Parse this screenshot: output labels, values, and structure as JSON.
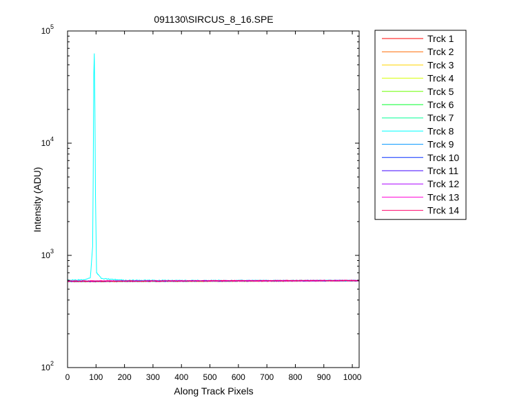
{
  "chart_data": {
    "type": "line",
    "title": "091130\\SIRCUS_8_16.SPE",
    "xlabel": "Along Track Pixels",
    "ylabel": "Intensity (ADU)",
    "xlim": [
      0,
      1024
    ],
    "ylim": [
      100,
      100000
    ],
    "yscale": "log",
    "x_ticks": [
      0,
      100,
      200,
      300,
      400,
      500,
      600,
      700,
      800,
      900,
      1000
    ],
    "y_ticks": [
      {
        "value": 100,
        "base": "10",
        "exp": "2"
      },
      {
        "value": 1000,
        "base": "10",
        "exp": "3"
      },
      {
        "value": 10000,
        "base": "10",
        "exp": "4"
      },
      {
        "value": 100000,
        "base": "10",
        "exp": "5"
      }
    ],
    "legend_position": "outside-right",
    "grid": false,
    "baseline_level": 590,
    "series": [
      {
        "name": "Trck 1",
        "color": "#ff0000",
        "x": [
          0,
          200,
          400,
          600,
          800,
          1024
        ],
        "y": [
          583,
          585,
          588,
          590,
          592,
          595
        ]
      },
      {
        "name": "Trck 2",
        "color": "#ff6a00",
        "x": [
          0,
          200,
          400,
          600,
          800,
          1024
        ],
        "y": [
          584,
          586,
          588,
          590,
          592,
          594
        ]
      },
      {
        "name": "Trck 3",
        "color": "#ffd400",
        "x": [
          0,
          200,
          400,
          600,
          800,
          1024
        ],
        "y": [
          585,
          587,
          589,
          591,
          592,
          594
        ]
      },
      {
        "name": "Trck 4",
        "color": "#d4ff00",
        "x": [
          0,
          200,
          400,
          600,
          800,
          1024
        ],
        "y": [
          585,
          587,
          589,
          591,
          593,
          594
        ]
      },
      {
        "name": "Trck 5",
        "color": "#6aff00",
        "x": [
          0,
          200,
          400,
          600,
          800,
          1024
        ],
        "y": [
          586,
          588,
          589,
          591,
          593,
          595
        ]
      },
      {
        "name": "Trck 6",
        "color": "#00ff2a",
        "x": [
          0,
          200,
          400,
          600,
          800,
          1024
        ],
        "y": [
          586,
          588,
          590,
          591,
          593,
          595
        ]
      },
      {
        "name": "Trck 7",
        "color": "#00ff95",
        "x": [
          0,
          200,
          400,
          600,
          800,
          1024
        ],
        "y": [
          587,
          588,
          590,
          592,
          593,
          595
        ]
      },
      {
        "name": "Trck 8",
        "color": "#00ffff",
        "x": [
          0,
          60,
          80,
          88,
          90,
          92,
          94,
          96,
          98,
          102,
          120,
          200,
          400,
          600,
          800,
          1024
        ],
        "y": [
          600,
          605,
          630,
          1200,
          5000,
          40000,
          63000,
          20000,
          3500,
          700,
          620,
          600,
          598,
          597,
          596,
          596
        ]
      },
      {
        "name": "Trck 9",
        "color": "#0095ff",
        "x": [
          0,
          200,
          400,
          600,
          800,
          1024
        ],
        "y": [
          588,
          589,
          590,
          592,
          593,
          595
        ]
      },
      {
        "name": "Trck 10",
        "color": "#002aff",
        "x": [
          0,
          200,
          400,
          600,
          800,
          1024
        ],
        "y": [
          588,
          589,
          591,
          592,
          594,
          596
        ]
      },
      {
        "name": "Trck 11",
        "color": "#3f00ff",
        "x": [
          0,
          200,
          400,
          600,
          800,
          1024
        ],
        "y": [
          588,
          590,
          591,
          593,
          594,
          596
        ]
      },
      {
        "name": "Trck 12",
        "color": "#aa00ff",
        "x": [
          0,
          200,
          400,
          600,
          800,
          1024
        ],
        "y": [
          589,
          590,
          591,
          593,
          594,
          596
        ]
      },
      {
        "name": "Trck 13",
        "color": "#ff00d4",
        "x": [
          0,
          200,
          400,
          600,
          800,
          1024
        ],
        "y": [
          589,
          590,
          592,
          593,
          595,
          596
        ]
      },
      {
        "name": "Trck 14",
        "color": "#ff006a",
        "x": [
          0,
          200,
          400,
          600,
          800,
          1024
        ],
        "y": [
          590,
          591,
          592,
          594,
          595,
          597
        ]
      }
    ]
  }
}
